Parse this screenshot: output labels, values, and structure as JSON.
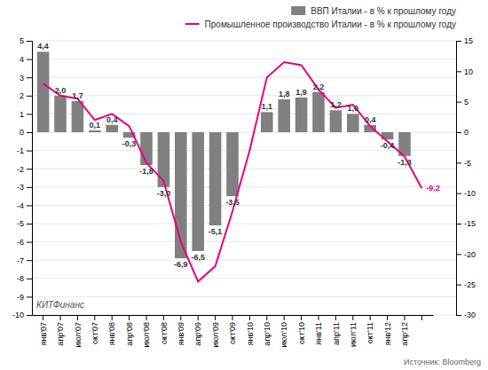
{
  "chart_data": {
    "type": "bar",
    "categories": [
      "янв'07",
      "апр'07",
      "июл'07",
      "окт'07",
      "янв'08",
      "апр'08",
      "июл'08",
      "окт'08",
      "янв'09",
      "апр'09",
      "июл'09",
      "окт'09",
      "янв'10",
      "апр'10",
      "июл'10",
      "окт'10",
      "янв'11",
      "апр'11",
      "июл'11",
      "окт'11",
      "янв'12",
      "апр'12",
      null
    ],
    "series": [
      {
        "name": "ВВП Италии - в % к прошлому году",
        "type": "bar",
        "color": "#808080",
        "values": [
          4.4,
          2.0,
          1.7,
          0.1,
          0.4,
          -0.3,
          -1.8,
          -3.0,
          -6.9,
          -6.5,
          -5.1,
          -3.5,
          0.0,
          1.1,
          1.8,
          1.9,
          2.2,
          1.2,
          1.0,
          0.4,
          -0.4,
          -1.3,
          null
        ],
        "value_labels": [
          "4,4",
          "2,0",
          "1,7",
          "0,1",
          "0,4",
          "-0,3",
          "-1,8",
          "-3,0",
          "-6,9",
          "-6,5",
          "-5,1",
          "-3,5",
          null,
          "1,1",
          "1,8",
          "1,9",
          "2,2",
          "1,2",
          "1,0",
          "0,4",
          "-0,4",
          "-1,3",
          null
        ]
      },
      {
        "name": "Промышленное производство Италии - в % к прошлому году",
        "type": "line",
        "color": "#e8007f",
        "axis": "y2",
        "values": [
          8.0,
          6.0,
          5.5,
          2.0,
          3.0,
          1.0,
          -5.0,
          -8.0,
          -18.0,
          -24.5,
          -22.0,
          -13.0,
          -3.0,
          9.0,
          11.5,
          11.0,
          7.0,
          4.0,
          4.5,
          1.0,
          -1.5,
          -4.0,
          -9.2
        ],
        "value_labels": [
          null,
          null,
          null,
          null,
          null,
          null,
          null,
          null,
          null,
          null,
          null,
          null,
          null,
          null,
          null,
          null,
          null,
          null,
          null,
          null,
          null,
          null,
          "-9,2"
        ]
      }
    ],
    "ylim": [
      -10,
      5
    ],
    "yticks": [
      -10,
      -9,
      -8,
      -7,
      -6,
      -5,
      -4,
      -3,
      -2,
      -1,
      0,
      1,
      2,
      3,
      4,
      5
    ],
    "y2lim": [
      -30,
      15
    ],
    "y2ticks": [
      -30,
      -25,
      -20,
      -15,
      -10,
      -5,
      0,
      5,
      10,
      15
    ],
    "grid": true,
    "legend": "upper right",
    "data_labels": true,
    "annotations": [
      "Источник: Bloomberg",
      "КИТФинанс"
    ]
  }
}
